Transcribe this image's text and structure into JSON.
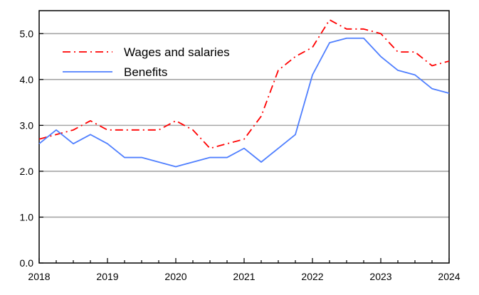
{
  "chart_data": {
    "type": "line",
    "title": "",
    "xlabel": "",
    "ylabel": "",
    "xlim": [
      2018,
      2024
    ],
    "ylim": [
      0,
      5.5
    ],
    "x_ticks": [
      "2018",
      "2019",
      "2020",
      "2021",
      "2022",
      "2023",
      "2024"
    ],
    "y_ticks": [
      "0.0",
      "1.0",
      "2.0",
      "3.0",
      "4.0",
      "5.0"
    ],
    "grid": "horizontal",
    "legend_position": "top-left",
    "x": [
      2018.0,
      2018.25,
      2018.5,
      2018.75,
      2019.0,
      2019.25,
      2019.5,
      2019.75,
      2020.0,
      2020.25,
      2020.5,
      2020.75,
      2021.0,
      2021.25,
      2021.5,
      2021.75,
      2022.0,
      2022.25,
      2022.5,
      2022.75,
      2023.0,
      2023.25,
      2023.5,
      2023.75,
      2024.0
    ],
    "series": [
      {
        "name": "Wages and salaries",
        "color": "#ff0000",
        "line_style": "dash-dot",
        "values": [
          2.7,
          2.8,
          2.9,
          3.1,
          2.9,
          2.9,
          2.9,
          2.9,
          3.1,
          2.9,
          2.5,
          2.6,
          2.7,
          3.2,
          4.2,
          4.5,
          4.7,
          5.3,
          5.1,
          5.1,
          5.0,
          4.6,
          4.6,
          4.3,
          4.4
        ]
      },
      {
        "name": "Benefits",
        "color": "#4f7fff",
        "line_style": "solid",
        "values": [
          2.6,
          2.9,
          2.6,
          2.8,
          2.6,
          2.3,
          2.3,
          2.2,
          2.1,
          2.2,
          2.3,
          2.3,
          2.5,
          2.2,
          2.5,
          2.8,
          4.1,
          4.8,
          4.9,
          4.9,
          4.5,
          4.2,
          4.1,
          3.8,
          3.7
        ]
      }
    ]
  }
}
